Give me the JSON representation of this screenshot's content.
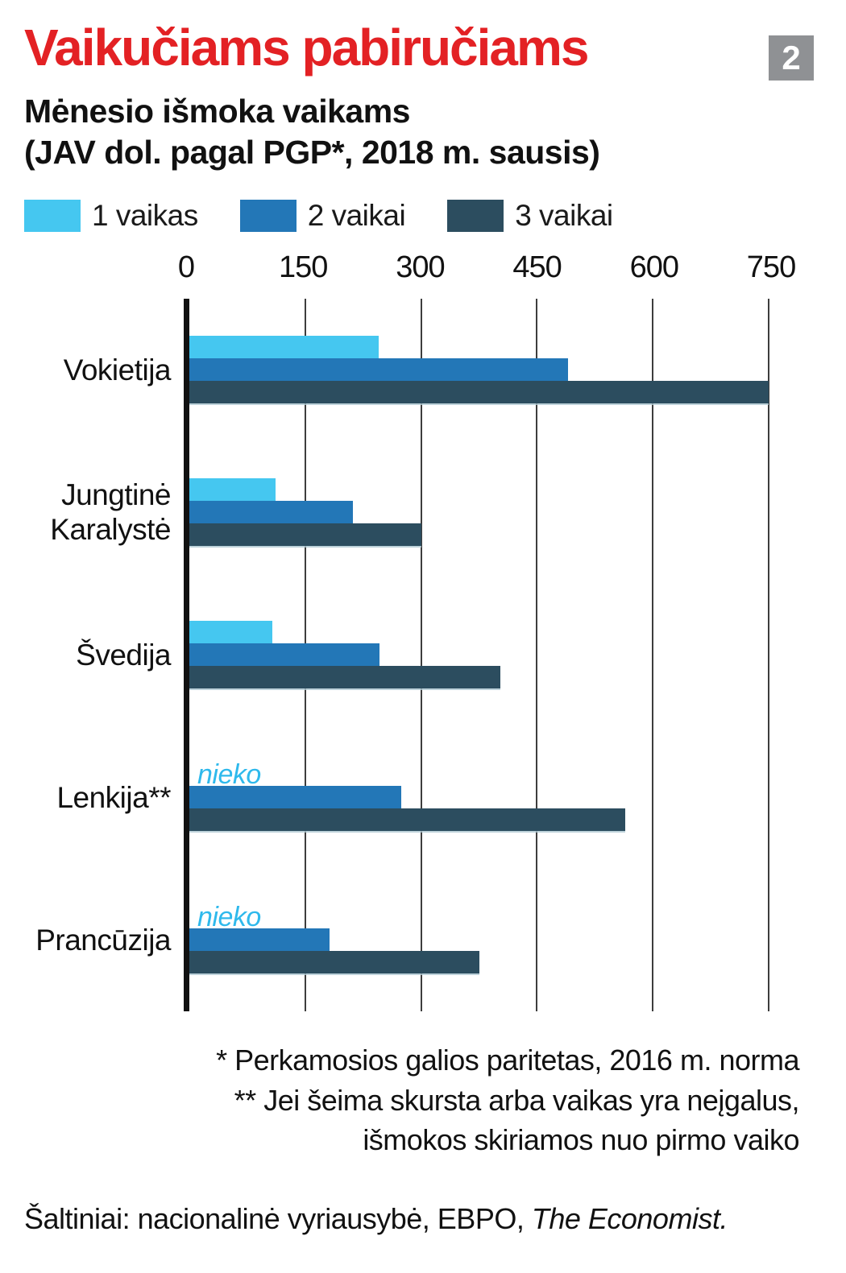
{
  "page": {
    "badge": "2"
  },
  "header": {
    "title": "Vaikučiams pabiručiams",
    "subtitle_line1": "Mėnesio išmoka vaikams",
    "subtitle_line2": "(JAV dol. pagal PGP*, 2018 m. sausis)"
  },
  "legend": [
    {
      "label": "1 vaikas",
      "color": "#45c7f0"
    },
    {
      "label": "2 vaikai",
      "color": "#2377b7"
    },
    {
      "label": "3 vaikai",
      "color": "#2c4d5f"
    }
  ],
  "chart_data": {
    "type": "bar",
    "orientation": "horizontal",
    "title": "Vaikučiams pabiručiams",
    "subtitle": "Mėnesio išmoka vaikams (JAV dol. pagal PGP*, 2018 m. sausis)",
    "xlim": [
      0,
      750
    ],
    "x_ticks": [
      0,
      150,
      300,
      450,
      600,
      750
    ],
    "grid": true,
    "legend_position": "top",
    "categories": [
      "Vokietija",
      "Jungtinė Karalystė",
      "Švedija",
      "Lenkija**",
      "Prancūzija"
    ],
    "series": [
      {
        "name": "1 vaikas",
        "color": "#45c7f0",
        "values": [
          245,
          112,
          107,
          null,
          null
        ]
      },
      {
        "name": "2 vaikai",
        "color": "#2377b7",
        "values": [
          490,
          212,
          246,
          274,
          181
        ]
      },
      {
        "name": "3 vaikai",
        "color": "#2c4d5f",
        "values": [
          750,
          300,
          403,
          564,
          376
        ]
      }
    ],
    "null_label": "nieko"
  },
  "footnotes": {
    "line1": "* Perkamosios galios paritetas, 2016 m. norma",
    "line2": "** Jei šeima skursta arba vaikas yra neįgalus,",
    "line3": "išmokos skiriamos nuo pirmo vaiko"
  },
  "source": {
    "prefix": "Šaltiniai: nacionalinė vyriausybė, EBPO, ",
    "italic": "The Economist."
  }
}
